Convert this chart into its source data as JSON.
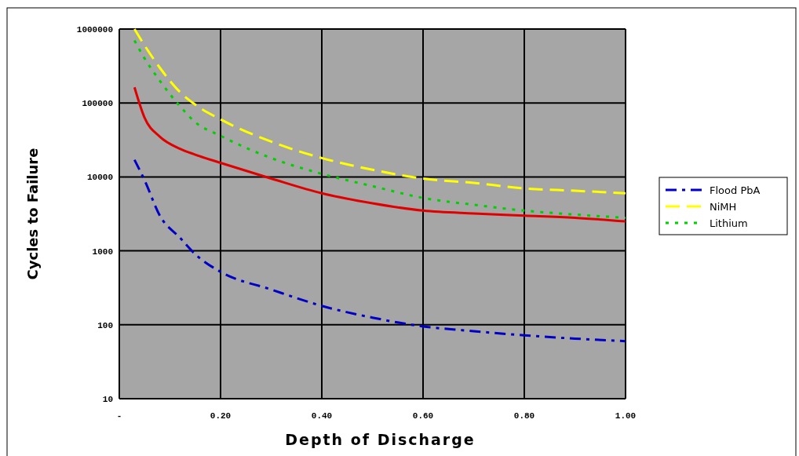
{
  "chart_data": {
    "type": "line",
    "xlabel": "Depth of Discharge",
    "ylabel": "Cycles to Failure",
    "log": "y",
    "grid": true,
    "legend": "right",
    "xlim": [
      0,
      1
    ],
    "ylim": [
      10,
      1000000
    ],
    "xticks": [
      {
        "value": 0,
        "label": "-"
      },
      {
        "value": 0.2,
        "label": "0.20"
      },
      {
        "value": 0.4,
        "label": "0.40"
      },
      {
        "value": 0.6,
        "label": "0.60"
      },
      {
        "value": 0.8,
        "label": "0.80"
      },
      {
        "value": 1,
        "label": "1.00"
      }
    ],
    "yticks": [
      10,
      100,
      1000,
      10000,
      100000,
      1000000
    ],
    "x": [
      0.03,
      0.05,
      0.08,
      0.12,
      0.15,
      0.2,
      0.3,
      0.4,
      0.5,
      0.6,
      0.7,
      0.8,
      0.9,
      1.0
    ],
    "series": [
      {
        "color": "#e00000",
        "line_style": "solid",
        "values": [
          163000,
          63000,
          35000,
          24000,
          20000,
          15500,
          9500,
          6000,
          4400,
          3500,
          3200,
          3000,
          2800,
          2500
        ]
      },
      {
        "name": "Flood PbA",
        "color": "#0000c8",
        "line_style": "dashdot",
        "values": [
          17000,
          9000,
          3000,
          1500,
          900,
          520,
          300,
          180,
          125,
          95,
          82,
          72,
          65,
          60
        ]
      },
      {
        "name": "NiMH",
        "color": "#ffff00",
        "line_style": "dashed",
        "values": [
          1000000,
          600000,
          300000,
          140000,
          95000,
          60000,
          30000,
          18000,
          12500,
          9500,
          8300,
          7000,
          6500,
          6000
        ]
      },
      {
        "name": "Lithium",
        "color": "#00d000",
        "line_style": "dotted",
        "values": [
          700000,
          400000,
          200000,
          90000,
          55000,
          36000,
          18000,
          11000,
          7500,
          5200,
          4200,
          3500,
          3100,
          2800
        ]
      }
    ]
  }
}
